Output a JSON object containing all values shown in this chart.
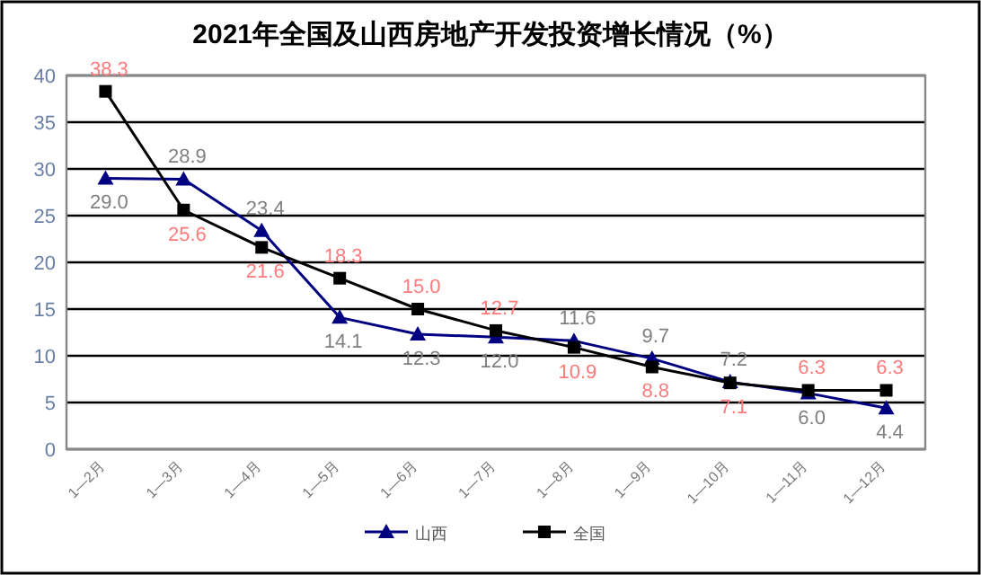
{
  "chart_data": {
    "type": "line",
    "title": "2021年全国及山西房地产开发投资增长情况（%）",
    "categories": [
      "1—2月",
      "1—3月",
      "1—4月",
      "1—5月",
      "1—6月",
      "1—7月",
      "1—8月",
      "1—9月",
      "1—10月",
      "1—11月",
      "1—12月"
    ],
    "ylim": [
      0,
      40
    ],
    "yticks": [
      0,
      5,
      10,
      15,
      20,
      25,
      30,
      35,
      40
    ],
    "grid": "y",
    "legend": "bottom",
    "series": [
      {
        "name": "山西",
        "color": "#000080",
        "marker": "triangle",
        "values": [
          29.0,
          28.9,
          23.4,
          14.1,
          12.3,
          12.0,
          11.6,
          9.7,
          7.2,
          6.0,
          4.4
        ],
        "value_labels": [
          "29.0",
          "28.9",
          "23.4",
          "14.1",
          "12.3",
          "12.0",
          "11.6",
          "9.7",
          "7.2",
          "6.0",
          "4.4"
        ]
      },
      {
        "name": "全国",
        "color": "#000000",
        "marker": "square",
        "values": [
          38.3,
          25.6,
          21.6,
          18.3,
          15.0,
          12.7,
          10.9,
          8.8,
          7.1,
          6.3,
          6.3
        ],
        "value_labels": [
          "38.3",
          "25.6",
          "21.6",
          "18.3",
          "15.0",
          "12.7",
          "10.9",
          "8.8",
          "7.1",
          "6.3",
          "6.3"
        ]
      }
    ]
  }
}
